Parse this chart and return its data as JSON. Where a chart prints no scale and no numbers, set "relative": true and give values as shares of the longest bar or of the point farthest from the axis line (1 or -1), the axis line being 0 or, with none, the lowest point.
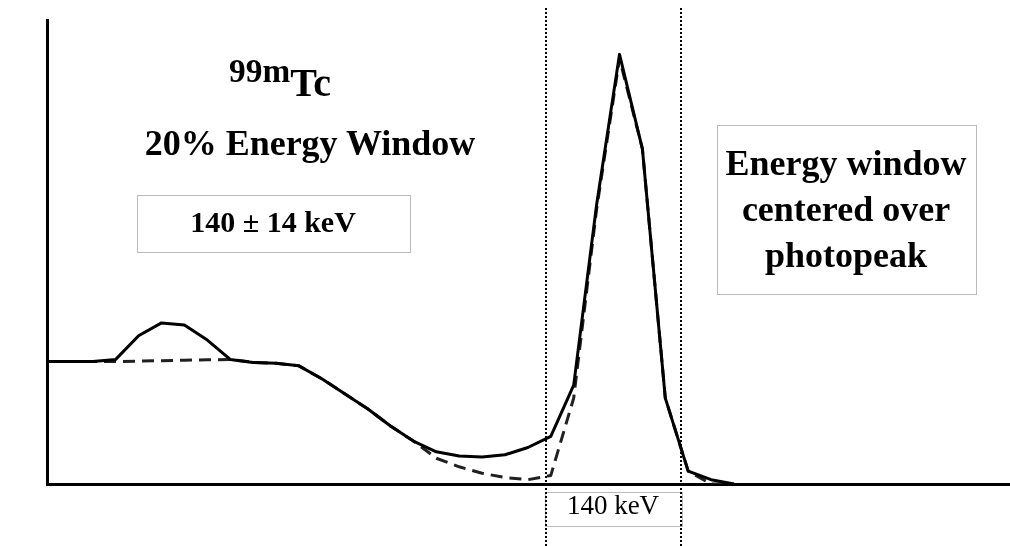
{
  "chart_data": {
    "type": "line",
    "title": "$^{99m}$Tc",
    "subtitle": "20% Energy Window",
    "annotations": [
      "140 ± 14 keV",
      "Energy window centered over photopeak",
      "140 keV"
    ],
    "relative": true,
    "grid": false,
    "legend": false,
    "marker": "none",
    "tick_labels": false,
    "categories": [
      null,
      null,
      null,
      null,
      null,
      null,
      null,
      null,
      null,
      null,
      null,
      null,
      null,
      null,
      null,
      null,
      null,
      null,
      null,
      null,
      null,
      null,
      null,
      null,
      null,
      null,
      null,
      null,
      null,
      null,
      null
    ],
    "series": [
      {
        "color": "#000000",
        "line_style": "solid",
        "values": [
          0.285,
          0.285,
          0.285,
          0.29,
          0.345,
          0.375,
          0.37,
          0.335,
          0.29,
          0.283,
          0.281,
          0.275,
          0.245,
          0.21,
          0.175,
          0.135,
          0.1,
          0.075,
          0.065,
          0.063,
          0.068,
          0.085,
          0.111,
          0.23,
          0.65,
          1,
          0.78,
          0.2,
          0.03,
          0.01,
          0
        ]
      },
      {
        "color": "#202020",
        "line_style": "dashed",
        "values": [
          0.285,
          0.285,
          0.285,
          0.285,
          0.286,
          0.287,
          0.288,
          0.289,
          0.29,
          0.283,
          0.281,
          0.275,
          0.245,
          0.21,
          0.175,
          0.135,
          0.1,
          0.06,
          0.04,
          0.025,
          0.015,
          0.01,
          0.02,
          0.2,
          0.64,
          0.99,
          0.78,
          0.2,
          0.03,
          0,
          0
        ]
      }
    ]
  }
}
